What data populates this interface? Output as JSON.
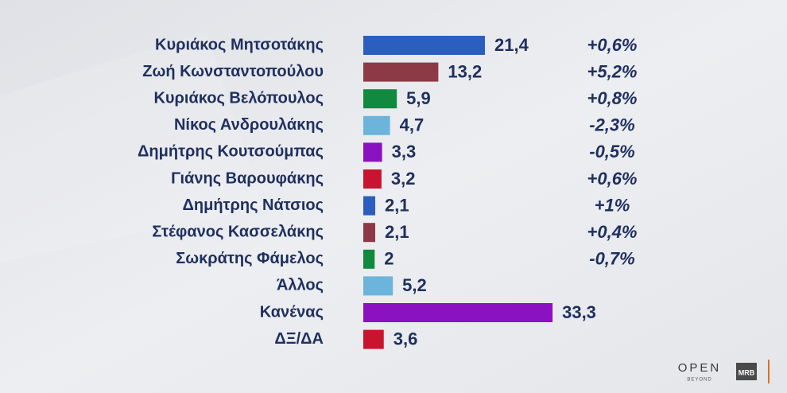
{
  "chart_data": {
    "type": "bar",
    "categories": [
      "Κυριάκος Μητσοτάκης",
      "Ζωή Κωνσταντοπούλου",
      "Κυριάκος Βελόπουλος",
      "Νίκος Ανδρουλάκης",
      "Δημήτρης Κουτσούμπας",
      "Γιάνης Βαρουφάκης",
      "Δημήτρης Νάτσιος",
      "Στέφανος Κασσελάκης",
      "Σωκράτης Φάμελος",
      "Άλλος",
      "Κανένας",
      "ΔΞ/ΔΑ"
    ],
    "values": [
      21.4,
      13.2,
      5.9,
      4.7,
      3.3,
      3.2,
      2.1,
      2.1,
      2,
      5.2,
      33.3,
      3.6
    ],
    "value_labels": [
      "21,4",
      "13,2",
      "5,9",
      "4,7",
      "3,3",
      "3,2",
      "2,1",
      "2,1",
      "2",
      "5,2",
      "33,3",
      "3,6"
    ],
    "colors": [
      "#2c5ec0",
      "#8c3a45",
      "#0f8a3e",
      "#6db4dc",
      "#8a12c0",
      "#c8142e",
      "#2c5ec0",
      "#8c3a45",
      "#0f8a3e",
      "#6db4dc",
      "#8a12c0",
      "#c8142e"
    ],
    "change_labels": [
      "+0,6%",
      "+5,2%",
      "+0,8%",
      "-2,3%",
      "-0,5%",
      "+0,6%",
      "+1%",
      "+0,4%",
      "-0,7%",
      null,
      null,
      null
    ]
  },
  "logos": {
    "open": "OPEN",
    "beyond": "BEYOND",
    "mrb": "MRB"
  }
}
